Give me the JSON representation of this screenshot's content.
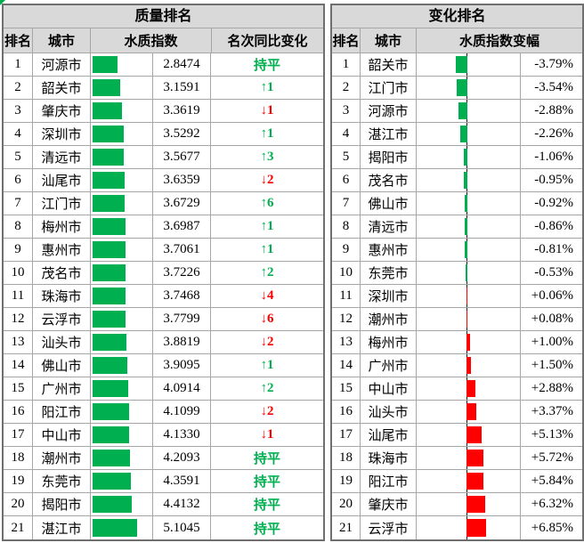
{
  "colors": {
    "green": "#00b050",
    "red": "#ff0000",
    "header_bg": "#d9d9d9",
    "grid_line": "#a6a6a6",
    "outer_border": "#6f6f6f"
  },
  "quality_table": {
    "title": "质量排名",
    "columns": {
      "rank": "排名",
      "city": "城市",
      "index": "水质指数",
      "change": "名次同比变化"
    },
    "bar_max": 5.1045,
    "bar_max_pct": 73,
    "rows": [
      {
        "rank": "1",
        "city": "河源市",
        "index": "2.8474",
        "value": 2.8474,
        "change": "持平",
        "trend": "flat"
      },
      {
        "rank": "2",
        "city": "韶关市",
        "index": "3.1591",
        "value": 3.1591,
        "change": "↑1",
        "trend": "up"
      },
      {
        "rank": "3",
        "city": "肇庆市",
        "index": "3.3619",
        "value": 3.3619,
        "change": "↓1",
        "trend": "down"
      },
      {
        "rank": "4",
        "city": "深圳市",
        "index": "3.5292",
        "value": 3.5292,
        "change": "↑1",
        "trend": "up"
      },
      {
        "rank": "5",
        "city": "清远市",
        "index": "3.5677",
        "value": 3.5677,
        "change": "↑3",
        "trend": "up"
      },
      {
        "rank": "6",
        "city": "汕尾市",
        "index": "3.6359",
        "value": 3.6359,
        "change": "↓2",
        "trend": "down"
      },
      {
        "rank": "7",
        "city": "江门市",
        "index": "3.6729",
        "value": 3.6729,
        "change": "↑6",
        "trend": "up"
      },
      {
        "rank": "8",
        "city": "梅州市",
        "index": "3.6987",
        "value": 3.6987,
        "change": "↑1",
        "trend": "up"
      },
      {
        "rank": "9",
        "city": "惠州市",
        "index": "3.7061",
        "value": 3.7061,
        "change": "↑1",
        "trend": "up"
      },
      {
        "rank": "10",
        "city": "茂名市",
        "index": "3.7226",
        "value": 3.7226,
        "change": "↑2",
        "trend": "up"
      },
      {
        "rank": "11",
        "city": "珠海市",
        "index": "3.7468",
        "value": 3.7468,
        "change": "↓4",
        "trend": "down"
      },
      {
        "rank": "12",
        "city": "云浮市",
        "index": "3.7799",
        "value": 3.7799,
        "change": "↓6",
        "trend": "down"
      },
      {
        "rank": "13",
        "city": "汕头市",
        "index": "3.8819",
        "value": 3.8819,
        "change": "↓2",
        "trend": "down"
      },
      {
        "rank": "14",
        "city": "佛山市",
        "index": "3.9095",
        "value": 3.9095,
        "change": "↑1",
        "trend": "up"
      },
      {
        "rank": "15",
        "city": "广州市",
        "index": "4.0914",
        "value": 4.0914,
        "change": "↑2",
        "trend": "up"
      },
      {
        "rank": "16",
        "city": "阳江市",
        "index": "4.1099",
        "value": 4.1099,
        "change": "↓2",
        "trend": "down"
      },
      {
        "rank": "17",
        "city": "中山市",
        "index": "4.1330",
        "value": 4.133,
        "change": "↓1",
        "trend": "down"
      },
      {
        "rank": "18",
        "city": "潮州市",
        "index": "4.2093",
        "value": 4.2093,
        "change": "持平",
        "trend": "flat"
      },
      {
        "rank": "19",
        "city": "东莞市",
        "index": "4.3591",
        "value": 4.3591,
        "change": "持平",
        "trend": "flat"
      },
      {
        "rank": "20",
        "city": "揭阳市",
        "index": "4.4132",
        "value": 4.4132,
        "change": "持平",
        "trend": "flat"
      },
      {
        "rank": "21",
        "city": "湛江市",
        "index": "5.1045",
        "value": 5.1045,
        "change": "持平",
        "trend": "flat"
      }
    ]
  },
  "change_table": {
    "title": "变化排名",
    "columns": {
      "rank": "排名",
      "city": "城市",
      "delta": "水质指数变幅"
    },
    "pct_per_unit": 2.74,
    "zero_pos_pct": 48.7,
    "rows": [
      {
        "rank": "1",
        "city": "韶关市",
        "delta": "-3.79%",
        "value": -3.79
      },
      {
        "rank": "2",
        "city": "江门市",
        "delta": "-3.54%",
        "value": -3.54
      },
      {
        "rank": "3",
        "city": "河源市",
        "delta": "-2.88%",
        "value": -2.88
      },
      {
        "rank": "4",
        "city": "湛江市",
        "delta": "-2.26%",
        "value": -2.26
      },
      {
        "rank": "5",
        "city": "揭阳市",
        "delta": "-1.06%",
        "value": -1.06
      },
      {
        "rank": "6",
        "city": "茂名市",
        "delta": "-0.95%",
        "value": -0.95
      },
      {
        "rank": "7",
        "city": "佛山市",
        "delta": "-0.92%",
        "value": -0.92
      },
      {
        "rank": "8",
        "city": "清远市",
        "delta": "-0.86%",
        "value": -0.86
      },
      {
        "rank": "9",
        "city": "惠州市",
        "delta": "-0.81%",
        "value": -0.81
      },
      {
        "rank": "10",
        "city": "东莞市",
        "delta": "-0.53%",
        "value": -0.53
      },
      {
        "rank": "11",
        "city": "深圳市",
        "delta": "+0.06%",
        "value": 0.06
      },
      {
        "rank": "12",
        "city": "潮州市",
        "delta": "+0.08%",
        "value": 0.08
      },
      {
        "rank": "13",
        "city": "梅州市",
        "delta": "+1.00%",
        "value": 1.0
      },
      {
        "rank": "14",
        "city": "广州市",
        "delta": "+1.50%",
        "value": 1.5
      },
      {
        "rank": "15",
        "city": "中山市",
        "delta": "+2.88%",
        "value": 2.88
      },
      {
        "rank": "16",
        "city": "汕头市",
        "delta": "+3.37%",
        "value": 3.37
      },
      {
        "rank": "17",
        "city": "汕尾市",
        "delta": "+5.13%",
        "value": 5.13
      },
      {
        "rank": "18",
        "city": "珠海市",
        "delta": "+5.72%",
        "value": 5.72
      },
      {
        "rank": "19",
        "city": "阳江市",
        "delta": "+5.84%",
        "value": 5.84
      },
      {
        "rank": "20",
        "city": "肇庆市",
        "delta": "+6.32%",
        "value": 6.32
      },
      {
        "rank": "21",
        "city": "云浮市",
        "delta": "+6.85%",
        "value": 6.85
      }
    ]
  }
}
